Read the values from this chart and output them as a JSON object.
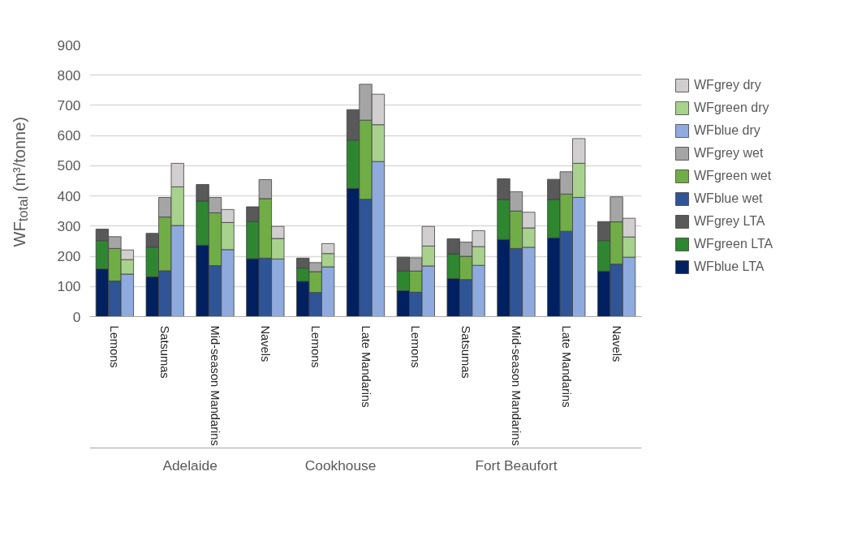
{
  "chart_data": {
    "type": "bar",
    "stacked": true,
    "ylabel": "WF$_{total}$ (m³/tonne)",
    "categories": [
      null,
      "Lemons",
      null,
      null,
      "Satsumas",
      null,
      null,
      "Mid-season Mandarins",
      null,
      null,
      "Navels",
      null,
      null,
      "Lemons",
      null,
      null,
      "Late Mandarins",
      null,
      null,
      "Lemons",
      null,
      null,
      "Satsumas",
      null,
      null,
      "Mid-season Mandarins",
      null,
      null,
      "Late Mandarins",
      null,
      null,
      "Navels",
      null
    ],
    "series": [
      {
        "name": "WFblue LTA",
        "color": "#002060",
        "values": [
          158,
          null,
          null,
          132,
          null,
          null,
          237,
          null,
          null,
          192,
          null,
          null,
          117,
          null,
          null,
          425,
          null,
          null,
          86,
          null,
          null,
          126,
          null,
          null,
          256,
          null,
          null,
          261,
          null,
          null,
          151,
          null,
          null
        ]
      },
      {
        "name": "WFgreen LTA",
        "color": "#2e8631",
        "values": [
          94,
          null,
          null,
          98,
          null,
          null,
          146,
          null,
          null,
          123,
          null,
          null,
          44,
          null,
          null,
          160,
          null,
          null,
          65,
          null,
          null,
          82,
          null,
          null,
          132,
          null,
          null,
          127,
          null,
          null,
          101,
          null,
          null
        ]
      },
      {
        "name": "WFgrey LTA",
        "color": "#595959",
        "values": [
          38,
          null,
          null,
          46,
          null,
          null,
          55,
          null,
          null,
          49,
          null,
          null,
          33,
          null,
          null,
          101,
          null,
          null,
          46,
          null,
          null,
          50,
          null,
          null,
          69,
          null,
          null,
          67,
          null,
          null,
          63,
          null,
          null
        ]
      },
      {
        "name": "WFblue wet",
        "color": "#2f5597",
        "values": [
          null,
          118,
          null,
          null,
          152,
          null,
          null,
          169,
          null,
          null,
          194,
          null,
          null,
          80,
          null,
          null,
          389,
          null,
          null,
          81,
          null,
          null,
          123,
          null,
          null,
          226,
          null,
          null,
          283,
          null,
          null,
          174,
          null
        ]
      },
      {
        "name": "WFgreen wet",
        "color": "#70ad47",
        "values": [
          null,
          108,
          null,
          null,
          178,
          null,
          null,
          175,
          null,
          null,
          197,
          null,
          null,
          69,
          null,
          null,
          262,
          null,
          null,
          70,
          null,
          null,
          77,
          null,
          null,
          124,
          null,
          null,
          123,
          null,
          null,
          140,
          null
        ]
      },
      {
        "name": "WFgrey wet",
        "color": "#a5a5a5",
        "values": [
          null,
          39,
          null,
          null,
          65,
          null,
          null,
          51,
          null,
          null,
          63,
          null,
          null,
          30,
          null,
          null,
          119,
          null,
          null,
          44,
          null,
          null,
          47,
          null,
          null,
          64,
          null,
          null,
          74,
          null,
          null,
          83,
          null
        ]
      },
      {
        "name": "WFblue dry",
        "color": "#8faadc",
        "values": [
          null,
          null,
          141,
          null,
          null,
          302,
          null,
          null,
          222,
          null,
          null,
          191,
          null,
          null,
          165,
          null,
          null,
          514,
          null,
          null,
          168,
          null,
          null,
          170,
          null,
          null,
          230,
          null,
          null,
          395,
          null,
          null,
          197
        ]
      },
      {
        "name": "WFgreen dry",
        "color": "#a9d18e",
        "values": [
          null,
          null,
          48,
          null,
          null,
          128,
          null,
          null,
          90,
          null,
          null,
          68,
          null,
          null,
          44,
          null,
          null,
          122,
          null,
          null,
          66,
          null,
          null,
          62,
          null,
          null,
          64,
          null,
          null,
          113,
          null,
          null,
          67
        ]
      },
      {
        "name": "WFgrey dry",
        "color": "#d0cece",
        "values": [
          null,
          null,
          32,
          null,
          null,
          78,
          null,
          null,
          43,
          null,
          null,
          40,
          null,
          null,
          33,
          null,
          null,
          101,
          null,
          null,
          65,
          null,
          null,
          53,
          null,
          null,
          52,
          null,
          null,
          82,
          null,
          null,
          62
        ]
      }
    ],
    "ylim": [
      0,
      900
    ],
    "yticks": [
      0,
      100,
      200,
      300,
      400,
      500,
      600,
      700,
      800,
      900
    ],
    "grid": "y",
    "legend": "right",
    "annotations": [
      "Adelaide",
      "Cookhouse",
      "Fort Beaufort"
    ]
  }
}
